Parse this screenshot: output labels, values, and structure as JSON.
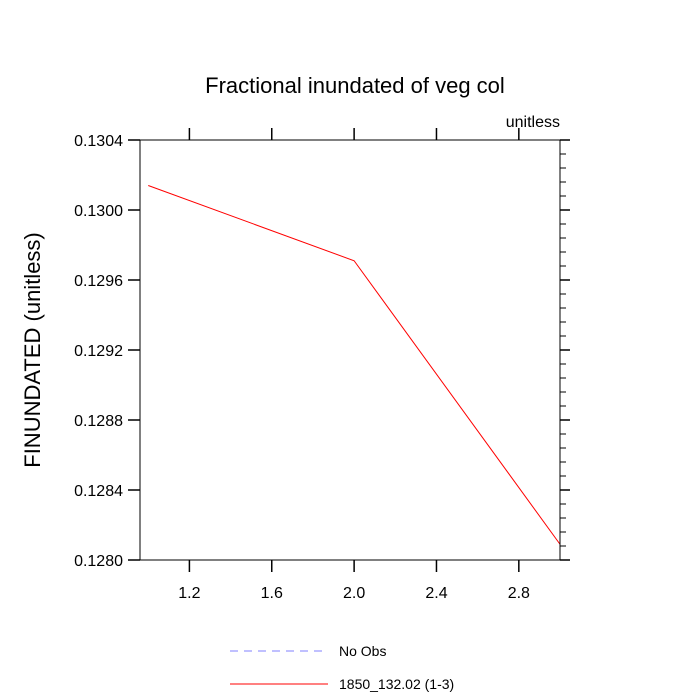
{
  "chart_data": {
    "type": "line",
    "title": "Fractional inundated of veg col",
    "units_label": "unitless",
    "ylabel": "FINUNDATED  (unitless)",
    "xlabel": "",
    "xlim": [
      0.96,
      3.0
    ],
    "ylim": [
      0.128,
      0.1304
    ],
    "x_ticks": [
      1.2,
      1.6,
      2.0,
      2.4,
      2.8
    ],
    "x_tick_labels": [
      "1.2",
      "1.6",
      "2.0",
      "2.4",
      "2.8"
    ],
    "y_ticks": [
      0.128,
      0.1284,
      0.1288,
      0.1292,
      0.1296,
      0.13,
      0.1304
    ],
    "y_tick_labels": [
      "0.1280",
      "0.1284",
      "0.1288",
      "0.1292",
      "0.1296",
      "0.1300",
      "0.1304"
    ],
    "grid": false,
    "legend_position": "bottom",
    "series": [
      {
        "name": "No Obs",
        "color": "#8080ff",
        "dash": "dashed",
        "x": [],
        "y": []
      },
      {
        "name": "1850_132.02 (1-3)",
        "color": "#ff0000",
        "dash": "solid",
        "x": [
          1.0,
          2.0,
          3.0
        ],
        "y": [
          0.13014,
          0.12971,
          0.12809
        ]
      }
    ]
  }
}
